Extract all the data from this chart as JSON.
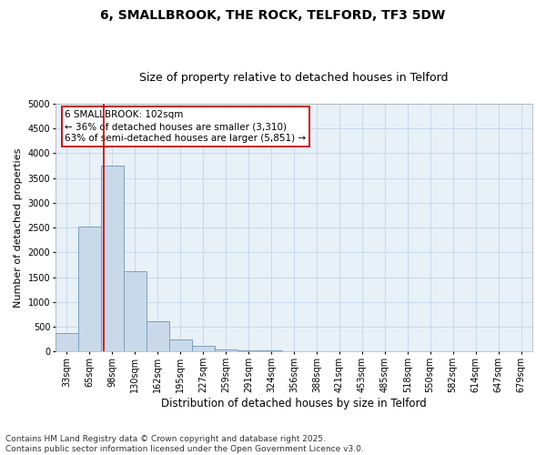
{
  "title": "6, SMALLBROOK, THE ROCK, TELFORD, TF3 5DW",
  "subtitle": "Size of property relative to detached houses in Telford",
  "xlabel": "Distribution of detached houses by size in Telford",
  "ylabel": "Number of detached properties",
  "categories": [
    "33sqm",
    "65sqm",
    "98sqm",
    "130sqm",
    "162sqm",
    "195sqm",
    "227sqm",
    "259sqm",
    "291sqm",
    "324sqm",
    "356sqm",
    "388sqm",
    "421sqm",
    "453sqm",
    "485sqm",
    "518sqm",
    "550sqm",
    "582sqm",
    "614sqm",
    "647sqm",
    "679sqm"
  ],
  "values": [
    380,
    2530,
    3750,
    1620,
    620,
    240,
    110,
    50,
    30,
    20,
    0,
    0,
    0,
    0,
    0,
    0,
    0,
    0,
    0,
    0,
    0
  ],
  "bar_color": "#c9d9ea",
  "bar_edgecolor": "#7ba0ba",
  "bar_linewidth": 0.7,
  "ylim": [
    0,
    5000
  ],
  "yticks": [
    0,
    500,
    1000,
    1500,
    2000,
    2500,
    3000,
    3500,
    4000,
    4500,
    5000
  ],
  "vline_x": 1.63,
  "vline_color": "#cc0000",
  "vline_linewidth": 1.2,
  "annotation_text_line1": "6 SMALLBROOK: 102sqm",
  "annotation_text_line2": "← 36% of detached houses are smaller (3,310)",
  "annotation_text_line3": "63% of semi-detached houses are larger (5,851) →",
  "annotation_box_facecolor": "white",
  "annotation_box_edgecolor": "#cc0000",
  "grid_color": "#c8d8e8",
  "background_color": "#e8f0f8",
  "footer_line1": "Contains HM Land Registry data © Crown copyright and database right 2025.",
  "footer_line2": "Contains public sector information licensed under the Open Government Licence v3.0.",
  "title_fontsize": 10,
  "subtitle_fontsize": 9,
  "xlabel_fontsize": 8.5,
  "ylabel_fontsize": 8,
  "tick_fontsize": 7,
  "footer_fontsize": 6.5,
  "annot_fontsize": 7.5
}
